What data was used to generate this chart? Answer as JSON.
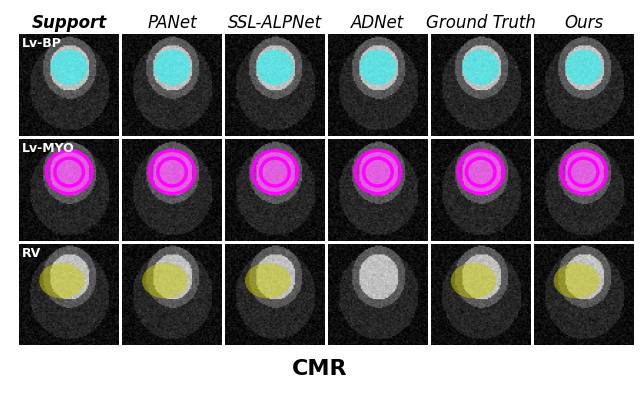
{
  "col_headers": [
    "Support",
    "PANet",
    "SSL-ALPNet",
    "ADNet",
    "Ground Truth",
    "Ours"
  ],
  "row_labels": [
    "Lv-BP",
    "Lv-MYO",
    "RV"
  ],
  "xlabel": "CMR",
  "xlabel_fontsize": 16,
  "xlabel_fontweight": "bold",
  "col_header_fontsize": 12,
  "row_label_fontsize": 9,
  "row_label_fontweight": "bold",
  "background_color": "#ffffff",
  "n_rows": 3,
  "n_cols": 6,
  "figsize": [
    6.4,
    3.97
  ],
  "dpi": 100,
  "grid_bg": "#000000",
  "overlay_colors": {
    "row0": "#00FFFF",
    "row1": "#FF00FF",
    "row2": "#CCCC00"
  }
}
